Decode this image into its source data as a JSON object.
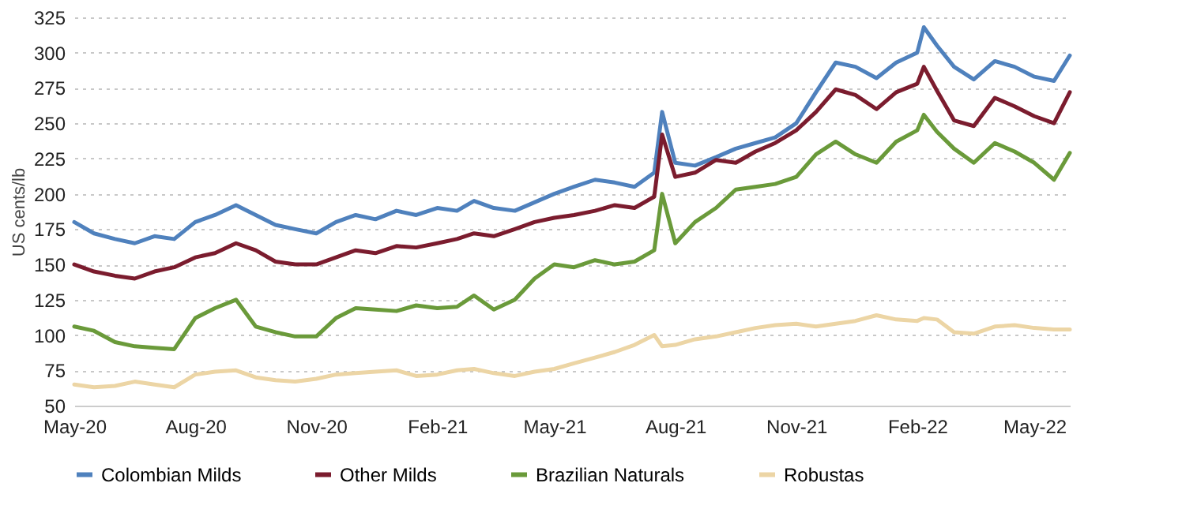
{
  "chart_data": {
    "type": "line",
    "ylabel": "US cents/lb",
    "x": [
      "2020-05-01",
      "2020-05-16",
      "2020-06-01",
      "2020-06-16",
      "2020-07-01",
      "2020-07-16",
      "2020-08-01",
      "2020-08-16",
      "2020-09-01",
      "2020-09-16",
      "2020-10-01",
      "2020-10-16",
      "2020-11-01",
      "2020-11-16",
      "2020-12-01",
      "2020-12-16",
      "2021-01-01",
      "2021-01-16",
      "2021-02-01",
      "2021-02-16",
      "2021-03-01",
      "2021-03-16",
      "2021-04-01",
      "2021-04-16",
      "2021-05-01",
      "2021-05-16",
      "2021-06-01",
      "2021-06-16",
      "2021-07-01",
      "2021-07-16",
      "2021-07-22",
      "2021-08-01",
      "2021-08-16",
      "2021-09-01",
      "2021-09-16",
      "2021-10-01",
      "2021-10-16",
      "2021-11-01",
      "2021-11-16",
      "2021-12-01",
      "2021-12-16",
      "2022-01-01",
      "2022-01-16",
      "2022-02-01",
      "2022-02-06",
      "2022-02-16",
      "2022-03-01",
      "2022-03-16",
      "2022-04-01",
      "2022-04-16",
      "2022-05-01",
      "2022-05-16",
      "2022-05-28"
    ],
    "series": [
      {
        "name": "Colombian Milds",
        "color": "#4f81bd",
        "values": [
          180,
          172,
          168,
          165,
          170,
          168,
          180,
          185,
          192,
          185,
          178,
          175,
          172,
          180,
          185,
          182,
          188,
          185,
          190,
          188,
          195,
          190,
          188,
          194,
          200,
          205,
          210,
          208,
          205,
          215,
          258,
          222,
          220,
          226,
          232,
          236,
          240,
          250,
          272,
          293,
          290,
          282,
          293,
          300,
          318,
          305,
          290,
          281,
          294,
          290,
          283,
          280,
          298
        ]
      },
      {
        "name": "Other Milds",
        "color": "#7b1c2e",
        "values": [
          150,
          145,
          142,
          140,
          145,
          148,
          155,
          158,
          165,
          160,
          152,
          150,
          150,
          155,
          160,
          158,
          163,
          162,
          165,
          168,
          172,
          170,
          175,
          180,
          183,
          185,
          188,
          192,
          190,
          198,
          242,
          212,
          215,
          224,
          222,
          230,
          236,
          245,
          258,
          274,
          270,
          260,
          272,
          278,
          290,
          273,
          252,
          248,
          268,
          262,
          255,
          250,
          272
        ]
      },
      {
        "name": "Brazilian Naturals",
        "color": "#6a9a3a",
        "values": [
          106,
          103,
          95,
          92,
          91,
          90,
          112,
          119,
          125,
          106,
          102,
          99,
          99,
          112,
          119,
          118,
          117,
          121,
          119,
          120,
          128,
          118,
          125,
          140,
          150,
          148,
          153,
          150,
          152,
          160,
          200,
          165,
          180,
          190,
          203,
          205,
          207,
          212,
          228,
          237,
          228,
          222,
          237,
          245,
          256,
          244,
          232,
          222,
          236,
          230,
          222,
          210,
          229
        ]
      },
      {
        "name": "Robustas",
        "color": "#ecd5a5",
        "values": [
          65,
          63,
          64,
          67,
          65,
          63,
          72,
          74,
          75,
          70,
          68,
          67,
          69,
          72,
          73,
          74,
          75,
          71,
          72,
          75,
          76,
          73,
          71,
          74,
          76,
          80,
          84,
          88,
          93,
          100,
          92,
          93,
          97,
          99,
          102,
          105,
          107,
          108,
          106,
          108,
          110,
          114,
          111,
          110,
          112,
          111,
          102,
          101,
          106,
          107,
          105,
          104,
          104
        ]
      }
    ],
    "xlim": [
      "2020-05-01",
      "2022-05-28"
    ],
    "xticks": [
      {
        "value": "2020-05-01",
        "label": "May-20"
      },
      {
        "value": "2020-08-01",
        "label": "Aug-20"
      },
      {
        "value": "2020-11-01",
        "label": "Nov-20"
      },
      {
        "value": "2021-02-01",
        "label": "Feb-21"
      },
      {
        "value": "2021-05-01",
        "label": "May-21"
      },
      {
        "value": "2021-08-01",
        "label": "Aug-21"
      },
      {
        "value": "2021-11-01",
        "label": "Nov-21"
      },
      {
        "value": "2022-02-01",
        "label": "Feb-22"
      },
      {
        "value": "2022-05-01",
        "label": "May-22"
      }
    ],
    "ylim": [
      50,
      325
    ],
    "yticks": [
      50,
      75,
      100,
      125,
      150,
      175,
      200,
      225,
      250,
      275,
      300,
      325
    ],
    "grid": "y",
    "legend": "bottom",
    "marker": "none",
    "line_style": "solid"
  }
}
